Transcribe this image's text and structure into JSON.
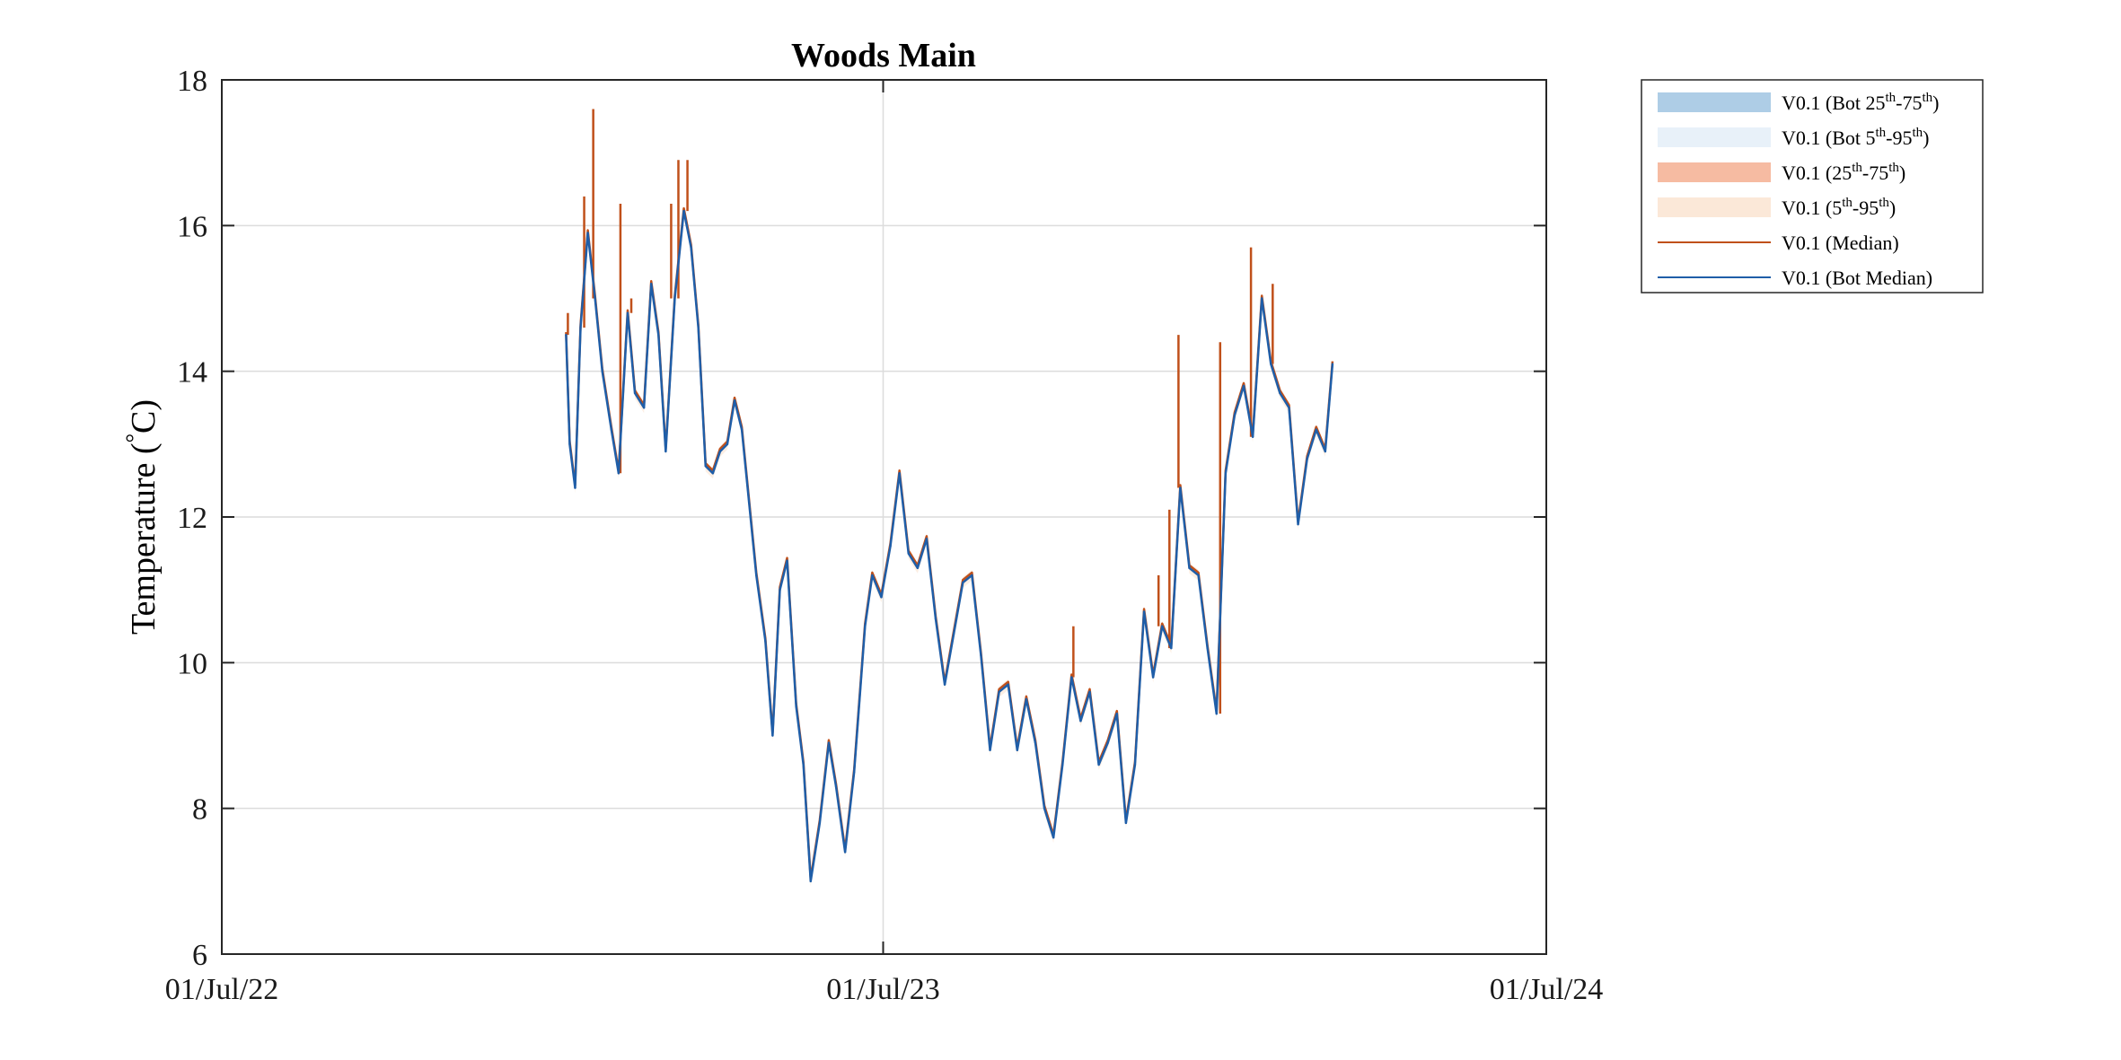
{
  "chart_data": {
    "type": "line",
    "title": "Woods Main",
    "xlabel": "",
    "ylabel_main": "Temperature (",
    "ylabel_degree": "°",
    "ylabel_unit": "C)",
    "x_ticks": [
      "01/Jul/22",
      "01/Jul/23",
      "01/Jul/24"
    ],
    "x_range": [
      "2022-07-01",
      "2024-07-01"
    ],
    "ylim": [
      6,
      18
    ],
    "y_ticks": [
      "6",
      "8",
      "10",
      "12",
      "14",
      "16",
      "18"
    ],
    "grid": true,
    "legend_placement": "outside-top-right",
    "colors": {
      "median": "#c0501a",
      "bot_median": "#1f5ea8",
      "bot_25_75": "#aecde6",
      "bot_5_95": "#e8f1f9",
      "p25_75": "#f6bba2",
      "p5_95": "#fbe8d8"
    },
    "legend": [
      {
        "key": "bot_25_75",
        "kind": "band",
        "pre": "V0.1 (Bot 25",
        "sup1": "th",
        "mid": "-75",
        "sup2": "th",
        "post": ")"
      },
      {
        "key": "bot_5_95",
        "kind": "band",
        "pre": "V0.1 (Bot 5",
        "sup1": "th",
        "mid": "-95",
        "sup2": "th",
        "post": ")"
      },
      {
        "key": "p25_75",
        "kind": "band",
        "pre": "V0.1 (25",
        "sup1": "th",
        "mid": "-75",
        "sup2": "th",
        "post": ")"
      },
      {
        "key": "p5_95",
        "kind": "band",
        "pre": "V0.1 (5",
        "sup1": "th",
        "mid": "-95",
        "sup2": "th",
        "post": ")"
      },
      {
        "key": "median",
        "kind": "line",
        "pre": "V0.1 (Median)",
        "sup1": "",
        "mid": "",
        "sup2": "",
        "post": ""
      },
      {
        "key": "bot_median",
        "kind": "line",
        "pre": "V0.1 (Bot Median)",
        "sup1": "",
        "mid": "",
        "sup2": "",
        "post": ""
      }
    ],
    "series": [
      {
        "key": "bot_median",
        "x": [
          "2023-01-07",
          "2023-01-09",
          "2023-01-12",
          "2023-01-15",
          "2023-01-19",
          "2023-01-23",
          "2023-01-27",
          "2023-02-01",
          "2023-02-05",
          "2023-02-10",
          "2023-02-14",
          "2023-02-19",
          "2023-02-23",
          "2023-02-27",
          "2023-03-03",
          "2023-03-08",
          "2023-03-13",
          "2023-03-17",
          "2023-03-21",
          "2023-03-25",
          "2023-03-29",
          "2023-04-02",
          "2023-04-06",
          "2023-04-10",
          "2023-04-14",
          "2023-04-18",
          "2023-04-22",
          "2023-04-27",
          "2023-05-01",
          "2023-05-05",
          "2023-05-09",
          "2023-05-14",
          "2023-05-18",
          "2023-05-22",
          "2023-05-27",
          "2023-06-01",
          "2023-06-05",
          "2023-06-10",
          "2023-06-15",
          "2023-06-21",
          "2023-06-25",
          "2023-06-30",
          "2023-07-05",
          "2023-07-10",
          "2023-07-15",
          "2023-07-20",
          "2023-07-25",
          "2023-07-30",
          "2023-08-04",
          "2023-08-09",
          "2023-08-14",
          "2023-08-19",
          "2023-08-24",
          "2023-08-29",
          "2023-09-03",
          "2023-09-08",
          "2023-09-13",
          "2023-09-18",
          "2023-09-23",
          "2023-09-28",
          "2023-10-03",
          "2023-10-08",
          "2023-10-13",
          "2023-10-18",
          "2023-10-23",
          "2023-10-28",
          "2023-11-02",
          "2023-11-07",
          "2023-11-12",
          "2023-11-17",
          "2023-11-22",
          "2023-11-27",
          "2023-12-02",
          "2023-12-07",
          "2023-12-12",
          "2023-12-17",
          "2023-12-22",
          "2023-12-27",
          "2024-01-01",
          "2024-01-06",
          "2024-01-11",
          "2024-01-16",
          "2024-01-21",
          "2024-01-26",
          "2024-01-31",
          "2024-02-05",
          "2024-02-10",
          "2024-02-15",
          "2024-02-20",
          "2024-02-25",
          "2024-03-01",
          "2024-03-05"
        ],
        "y": [
          14.5,
          13.0,
          12.4,
          14.6,
          15.9,
          15.0,
          14.0,
          13.2,
          12.6,
          14.8,
          13.7,
          13.5,
          15.2,
          14.5,
          12.9,
          15.0,
          16.2,
          15.7,
          14.6,
          12.7,
          12.6,
          12.9,
          13.0,
          13.6,
          13.2,
          12.2,
          11.2,
          10.3,
          9.0,
          11.0,
          11.4,
          9.4,
          8.6,
          7.0,
          7.8,
          8.9,
          8.3,
          7.4,
          8.5,
          10.5,
          11.2,
          10.9,
          11.6,
          12.6,
          11.5,
          11.3,
          11.7,
          10.6,
          9.7,
          10.4,
          11.1,
          11.2,
          10.1,
          8.8,
          9.6,
          9.7,
          8.8,
          9.5,
          8.9,
          8.0,
          7.6,
          8.6,
          9.8,
          9.2,
          9.6,
          8.6,
          8.9,
          9.3,
          7.8,
          8.6,
          10.7,
          9.8,
          10.5,
          10.2,
          12.4,
          11.3,
          11.2,
          10.2,
          9.3,
          12.6,
          13.4,
          13.8,
          13.1,
          15.0,
          14.1,
          13.7,
          13.5,
          11.9,
          12.8,
          13.2,
          12.9,
          14.1
        ]
      },
      {
        "key": "median",
        "x": [
          "2023-01-08",
          "2023-01-17",
          "2023-01-22",
          "2023-02-06",
          "2023-02-12",
          "2023-03-06",
          "2023-03-10",
          "2023-03-15",
          "2023-10-14",
          "2023-11-30",
          "2023-12-06",
          "2023-12-11",
          "2024-01-03",
          "2024-01-20",
          "2024-02-01"
        ],
        "y": [
          14.8,
          16.4,
          17.6,
          16.3,
          15.0,
          16.3,
          16.9,
          16.9,
          10.5,
          11.2,
          12.1,
          14.5,
          14.4,
          15.7,
          15.2
        ]
      }
    ]
  }
}
